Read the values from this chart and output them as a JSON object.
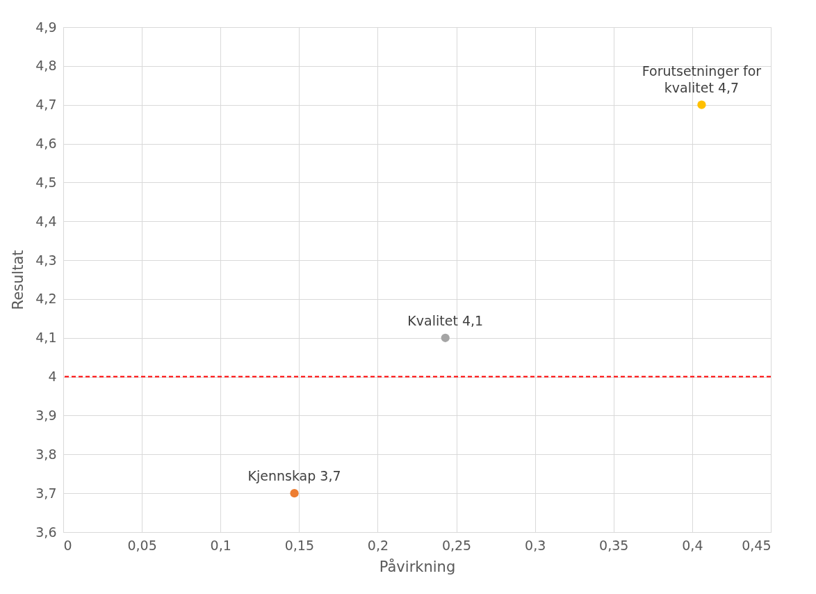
{
  "chart_data": {
    "type": "scatter",
    "xlabel": "Påvirkning",
    "ylabel": "Resultat",
    "x": [
      0.147,
      0.243,
      0.406
    ],
    "values": [
      3.7,
      4.1,
      4.7
    ],
    "colors": [
      "#ed7d31",
      "#a5a5a5",
      "#ffc000"
    ],
    "marker": "circle",
    "xlim": [
      0,
      0.45
    ],
    "xticks": [
      0,
      {
        "value": 0.05,
        "label": "0,05"
      },
      {
        "value": 0.1,
        "label": "0,1"
      },
      {
        "value": 0.15,
        "label": "0,15"
      },
      {
        "value": 0.2,
        "label": "0,2"
      },
      {
        "value": 0.25,
        "label": "0,25"
      },
      {
        "value": 0.3,
        "label": "0,3"
      },
      {
        "value": 0.35,
        "label": "0,35"
      },
      {
        "value": 0.4,
        "label": "0,4"
      },
      {
        "value": 0.45,
        "label": "0,45"
      }
    ],
    "ylim": [
      3.6,
      4.9
    ],
    "yticks": [
      {
        "value": 3.6,
        "label": "3,6"
      },
      {
        "value": 3.7,
        "label": "3,7"
      },
      {
        "value": 3.8,
        "label": "3,8"
      },
      {
        "value": 3.9,
        "label": "3,9"
      },
      4,
      {
        "value": 4.1,
        "label": "4,1"
      },
      {
        "value": 4.2,
        "label": "4,2"
      },
      {
        "value": 4.3,
        "label": "4,3"
      },
      {
        "value": 4.4,
        "label": "4,4"
      },
      {
        "value": 4.5,
        "label": "4,5"
      },
      {
        "value": 4.6,
        "label": "4,6"
      },
      {
        "value": 4.7,
        "label": "4,7"
      },
      {
        "value": 4.8,
        "label": "4,8"
      },
      {
        "value": 4.9,
        "label": "4,9"
      }
    ],
    "grid": true,
    "ref_lines": [
      {
        "axis": "y",
        "value": 4,
        "color": "#ff0000",
        "line_style": "dashed"
      }
    ],
    "annotations": [
      {
        "text": "Kjennskap 3,7",
        "x": 0.147,
        "y": 3.7
      },
      {
        "text": "Kvalitet 4,1",
        "x": 0.243,
        "y": 4.1
      },
      {
        "text": "Forutsetninger for\nkvalitet 4,7",
        "x": 0.406,
        "y": 4.7
      }
    ]
  }
}
